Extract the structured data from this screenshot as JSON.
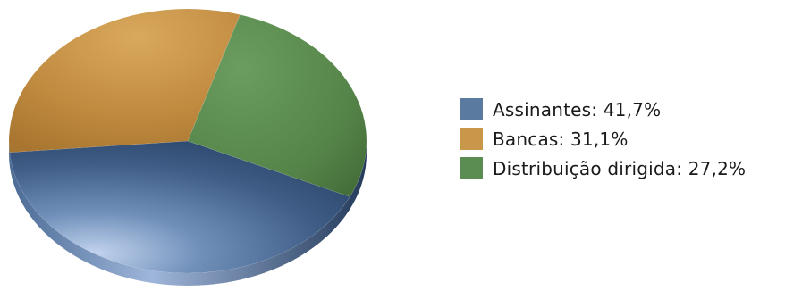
{
  "chart_data": {
    "type": "pie",
    "title": "",
    "series": [
      {
        "name": "Assinantes",
        "label": "Assinantes: 41,7%",
        "value": 41.7,
        "color": "#5a7a9f"
      },
      {
        "name": "Bancas",
        "label": "Bancas: 31,1%",
        "value": 31.1,
        "color": "#c8974a"
      },
      {
        "name": "Distribuição dirigida",
        "label": "Distribuição dirigida: 27,2%",
        "value": 27.2,
        "color": "#5b8c51"
      }
    ],
    "legend_position": "right",
    "style": "3d"
  }
}
